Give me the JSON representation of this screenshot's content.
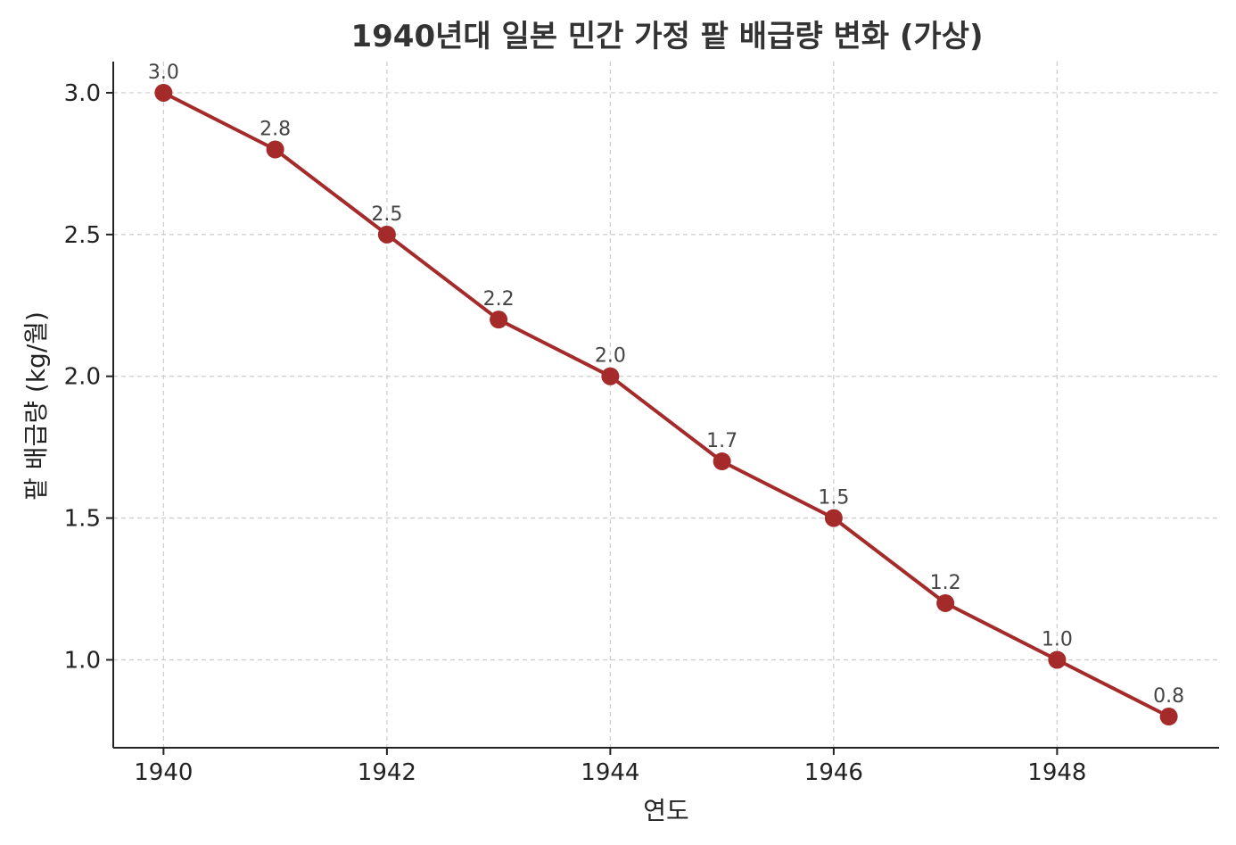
{
  "chart_data": {
    "type": "line",
    "title": "1940년대 일본 민간 가정 팥 배급량 변화 (가상)",
    "xlabel": "연도",
    "ylabel": "팥 배급량 (kg/월)",
    "x": [
      1940,
      1941,
      1942,
      1943,
      1944,
      1945,
      1946,
      1947,
      1948,
      1949
    ],
    "series": [
      {
        "name": "",
        "values": [
          3.0,
          2.8,
          2.5,
          2.2,
          2.0,
          1.7,
          1.5,
          1.2,
          1.0,
          0.8
        ],
        "color": "#a52a2a",
        "marker": "circle"
      }
    ],
    "data_labels": [
      "3.0",
      "2.8",
      "2.5",
      "2.2",
      "2.0",
      "1.7",
      "1.5",
      "1.2",
      "1.0",
      "0.8"
    ],
    "xticks": [
      1940,
      1942,
      1944,
      1946,
      1948
    ],
    "xtick_labels": [
      "1940",
      "1942",
      "1944",
      "1946",
      "1948"
    ],
    "yticks": [
      1.0,
      1.5,
      2.0,
      2.5,
      3.0
    ],
    "ytick_labels": [
      "1.0",
      "1.5",
      "2.0",
      "2.5",
      "3.0"
    ],
    "xlim": [
      1939.55,
      1949.45
    ],
    "ylim": [
      0.69,
      3.11
    ],
    "grid": true,
    "grid_style": "dashed",
    "legend": "none"
  }
}
